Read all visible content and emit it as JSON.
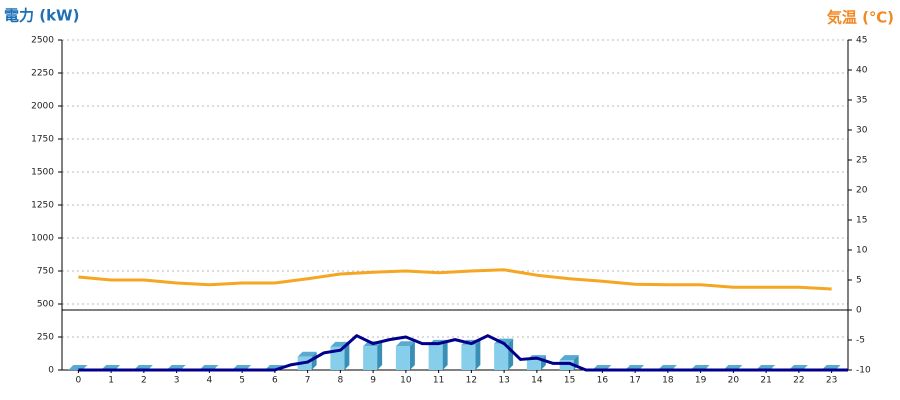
{
  "chart_data": {
    "type": "bar",
    "y_label": "電力 (kW)",
    "y2_label": "気温 (℃)",
    "categories": [
      "0",
      "1",
      "2",
      "3",
      "4",
      "5",
      "6",
      "7",
      "8",
      "9",
      "10",
      "11",
      "12",
      "13",
      "14",
      "15",
      "16",
      "17",
      "18",
      "19",
      "20",
      "21",
      "22",
      "23"
    ],
    "ylim": [
      0,
      2500
    ],
    "yticks": [
      0,
      250,
      500,
      750,
      1000,
      1250,
      1500,
      1750,
      2000,
      2250,
      2500
    ],
    "y2lim": [
      -10,
      45
    ],
    "y2ticks": [
      -10,
      -5,
      0,
      5,
      10,
      15,
      20,
      25,
      30,
      35,
      40,
      45
    ],
    "grid": true,
    "series": [
      {
        "type": "bar",
        "color": "#87ceeb",
        "values": [
          0,
          0,
          0,
          0,
          0,
          0,
          0,
          100,
          175,
          180,
          180,
          190,
          190,
          200,
          75,
          75,
          0,
          0,
          0,
          0,
          0,
          0,
          0,
          0
        ]
      },
      {
        "type": "line",
        "color": "#00008b",
        "x": [
          0,
          0.5,
          1,
          1.5,
          2,
          2.5,
          3,
          3.5,
          4,
          4.5,
          5,
          5.5,
          6,
          6.5,
          7,
          7.5,
          8,
          8.5,
          9,
          9.5,
          10,
          10.5,
          11,
          11.5,
          12,
          12.5,
          13,
          13.5,
          14,
          14.5,
          15,
          15.5,
          16,
          16.5,
          17,
          17.5,
          18,
          18.5,
          19,
          19.5,
          20,
          20.5,
          21,
          21.5,
          22,
          22.5,
          23,
          23.5
        ],
        "values": [
          0,
          0,
          0,
          0,
          0,
          0,
          0,
          0,
          0,
          0,
          0,
          0,
          0,
          40,
          60,
          130,
          150,
          260,
          200,
          230,
          250,
          200,
          200,
          230,
          200,
          260,
          200,
          80,
          90,
          50,
          50,
          0,
          0,
          0,
          0,
          0,
          0,
          0,
          0,
          0,
          0,
          0,
          0,
          0,
          0,
          0,
          0,
          0
        ]
      },
      {
        "type": "line",
        "axis": "y2",
        "color": "#f5a623",
        "values": [
          5.5,
          5,
          5,
          4.5,
          4.2,
          4.5,
          4.5,
          5.2,
          6,
          6.3,
          6.5,
          6.2,
          6.5,
          6.7,
          5.8,
          5.2,
          4.8,
          4.3,
          4.2,
          4.2,
          3.8,
          3.8,
          3.8,
          3.5
        ]
      }
    ]
  }
}
